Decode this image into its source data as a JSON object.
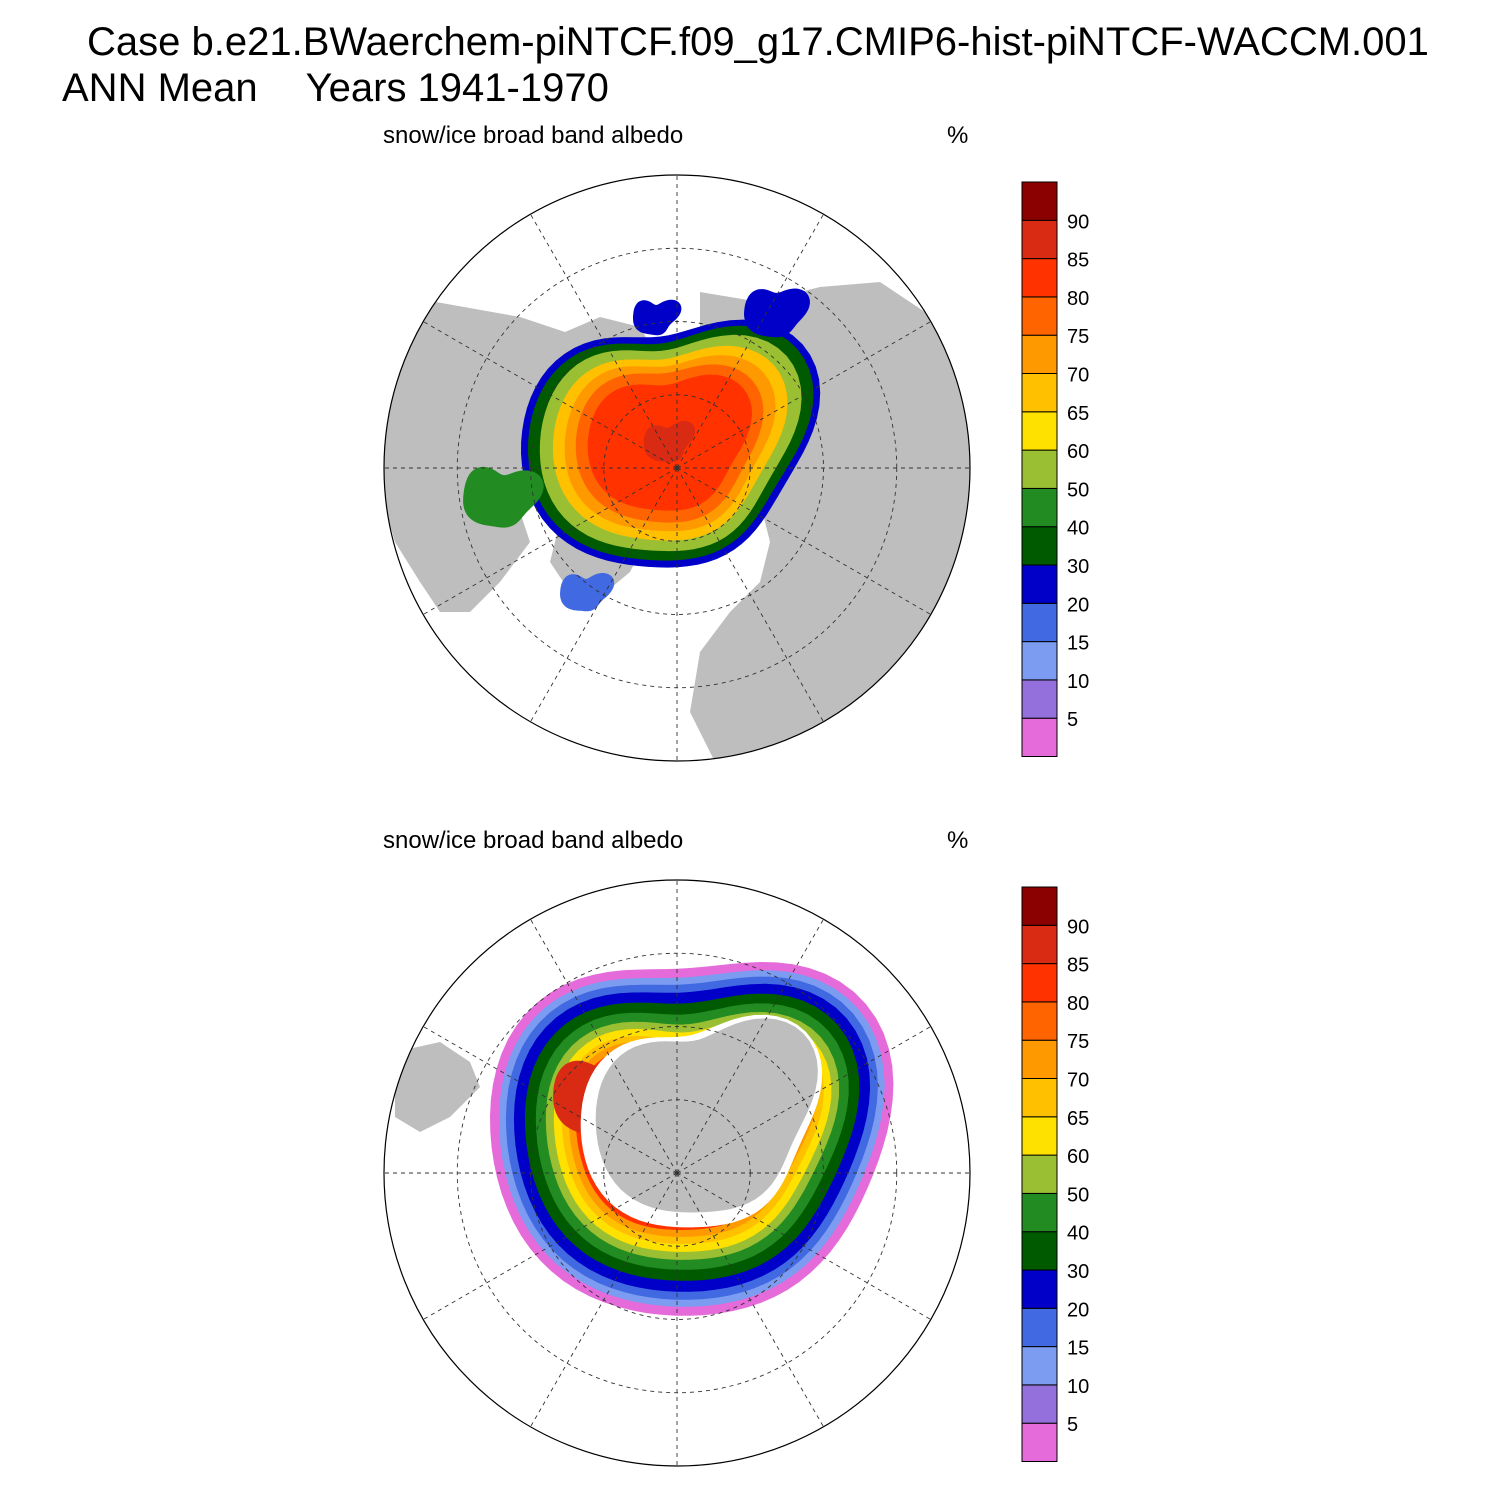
{
  "header": {
    "case_line": "Case b.e21.BWaerchem-piNTCF.f09_g17.CMIP6-hist-piNTCF-WACCM.001",
    "season": "ANN Mean",
    "years": "Years 1941-1970"
  },
  "colors": {
    "land": "#bebebe",
    "background": "#ffffff",
    "border": "#000000"
  },
  "colorbar": {
    "labels": [
      "5",
      "10",
      "15",
      "20",
      "30",
      "40",
      "50",
      "60",
      "65",
      "70",
      "75",
      "80",
      "85",
      "90"
    ],
    "colors": [
      "#e46bd9",
      "#9370db",
      "#7b9cf0",
      "#4169e1",
      "#0000c8",
      "#005a00",
      "#228b22",
      "#9bbf32",
      "#ffe100",
      "#ffc000",
      "#ff9900",
      "#ff6400",
      "#ff3200",
      "#d92a14",
      "#8b0000"
    ]
  },
  "panels": [
    {
      "id": "nh",
      "hemisphere": "north",
      "variable_label": "snow/ice broad band albedo",
      "units": "%"
    },
    {
      "id": "sh",
      "hemisphere": "south",
      "variable_label": "snow/ice broad band albedo",
      "units": "%"
    }
  ]
}
